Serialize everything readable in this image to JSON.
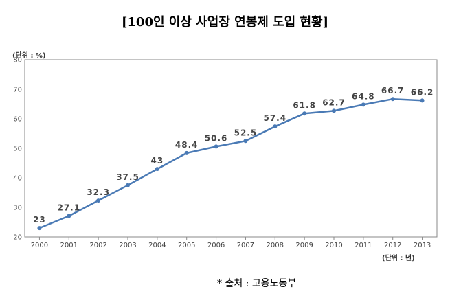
{
  "chart_data": {
    "type": "line",
    "title": "[100인 이상 사업장 연봉제 도입 현황]",
    "y_unit_label": "(단위 : %)",
    "x_unit_label": "(단위 : 년)",
    "source": "* 출처 : 고용노동부",
    "x": [
      "2000",
      "2001",
      "2002",
      "2003",
      "2004",
      "2005",
      "2006",
      "2007",
      "2008",
      "2009",
      "2010",
      "2011",
      "2012",
      "2013"
    ],
    "series": [
      {
        "values": [
          23,
          27.1,
          32.3,
          37.5,
          43,
          48.4,
          50.6,
          52.5,
          57.4,
          61.8,
          62.7,
          64.8,
          66.7,
          66.2
        ],
        "labels": [
          "23",
          "27.1",
          "32.3",
          "37.5",
          "43",
          "48.4",
          "50.6",
          "52.5",
          "57.4",
          "61.8",
          "62.7",
          "64.8",
          "66.7",
          "66.2"
        ]
      }
    ],
    "y_ticks": [
      "20",
      "30",
      "40",
      "50",
      "60",
      "70",
      "80"
    ],
    "ylim": [
      20,
      80
    ],
    "grid": true,
    "line_color": "#4a7ab5",
    "grid_color": "#c8c8c8",
    "axis_color": "#888888"
  }
}
